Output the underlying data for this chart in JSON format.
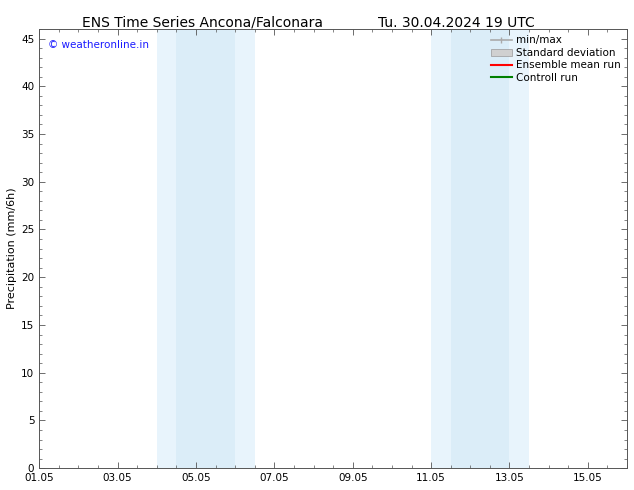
{
  "title_left": "ENS Time Series Ancona/Falconara",
  "title_right": "Tu. 30.04.2024 19 UTC",
  "ylabel": "Precipitation (mm/6h)",
  "ylim": [
    0,
    46
  ],
  "yticks": [
    0,
    5,
    10,
    15,
    20,
    25,
    30,
    35,
    40,
    45
  ],
  "xlim_start": 0,
  "xlim_end": 15,
  "xtick_labels": [
    "01.05",
    "03.05",
    "05.05",
    "07.05",
    "09.05",
    "11.05",
    "13.05",
    "15.05"
  ],
  "xtick_positions": [
    0,
    2,
    4,
    6,
    8,
    10,
    12,
    14
  ],
  "shade_bands": [
    {
      "xmin": 3.0,
      "xmax": 3.5,
      "color": "#e8f4fc"
    },
    {
      "xmin": 3.5,
      "xmax": 5.0,
      "color": "#dbedf8"
    },
    {
      "xmin": 5.0,
      "xmax": 5.5,
      "color": "#e8f4fc"
    },
    {
      "xmin": 10.0,
      "xmax": 10.5,
      "color": "#e8f4fc"
    },
    {
      "xmin": 10.5,
      "xmax": 12.0,
      "color": "#dbedf8"
    },
    {
      "xmin": 12.0,
      "xmax": 12.5,
      "color": "#e8f4fc"
    }
  ],
  "copyright_text": "© weatheronline.in",
  "copyright_color": "#1a1aff",
  "legend_items": [
    {
      "label": "min/max",
      "color": "#aaaaaa",
      "lw": 1.2,
      "style": "-",
      "type": "line_with_caps"
    },
    {
      "label": "Standard deviation",
      "color": "#d0d0d0",
      "lw": 6,
      "style": "-",
      "type": "patch"
    },
    {
      "label": "Ensemble mean run",
      "color": "#ff0000",
      "lw": 1.5,
      "style": "-",
      "type": "line"
    },
    {
      "label": "Controll run",
      "color": "#008000",
      "lw": 1.5,
      "style": "-",
      "type": "line"
    }
  ],
  "bg_color": "#ffffff",
  "plot_bg_color": "#ffffff",
  "border_color": "#555555",
  "title_fontsize": 10,
  "label_fontsize": 8,
  "tick_fontsize": 7.5,
  "legend_fontsize": 7.5,
  "copyright_fontsize": 7.5
}
